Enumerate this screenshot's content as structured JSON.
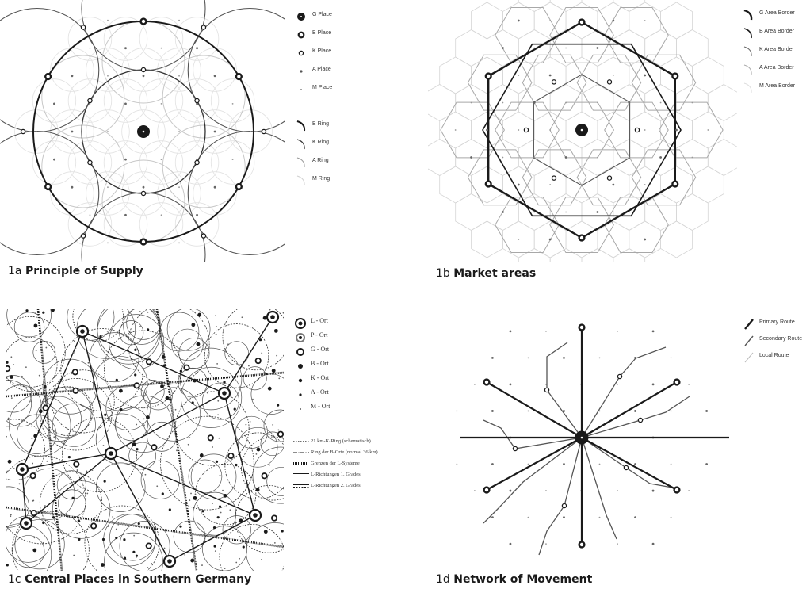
{
  "panels": {
    "a": {
      "number": "1a",
      "title": "Principle of Supply",
      "legend": [
        "G Place",
        "B Place",
        "K Place",
        "A Place",
        "M Place",
        "B Ring",
        "K Ring",
        "A Ring",
        "M Ring"
      ]
    },
    "b": {
      "number": "1b",
      "title": "Market areas",
      "legend": [
        "G Area Border",
        "B Area Border",
        "K Area Border",
        "A Area Border",
        "M Area Border"
      ]
    },
    "c": {
      "number": "1c",
      "title": "Central Places in Southern Germany",
      "legend": [
        "L - Ort",
        "P - Ort",
        "G - Ort",
        "B - Ort",
        "K - Ort",
        "A - Ort",
        "M - Ort"
      ],
      "legend2": [
        "21 km-K-Ring (schematisch)",
        "Ring der B-Orte (normal 36 km)",
        "Grenzen der L-Systeme",
        "L-Richtungen 1. Grades",
        "L-Richtungen 2. Grades"
      ]
    },
    "d": {
      "number": "1d",
      "title": "Network of Movement",
      "legend": [
        "Primary Route",
        "Secondary Route",
        "Local Route"
      ]
    }
  },
  "colors": {
    "ink": "#1a1a1a",
    "grey": "#9a9a9a",
    "light": "#cfcfcf"
  }
}
